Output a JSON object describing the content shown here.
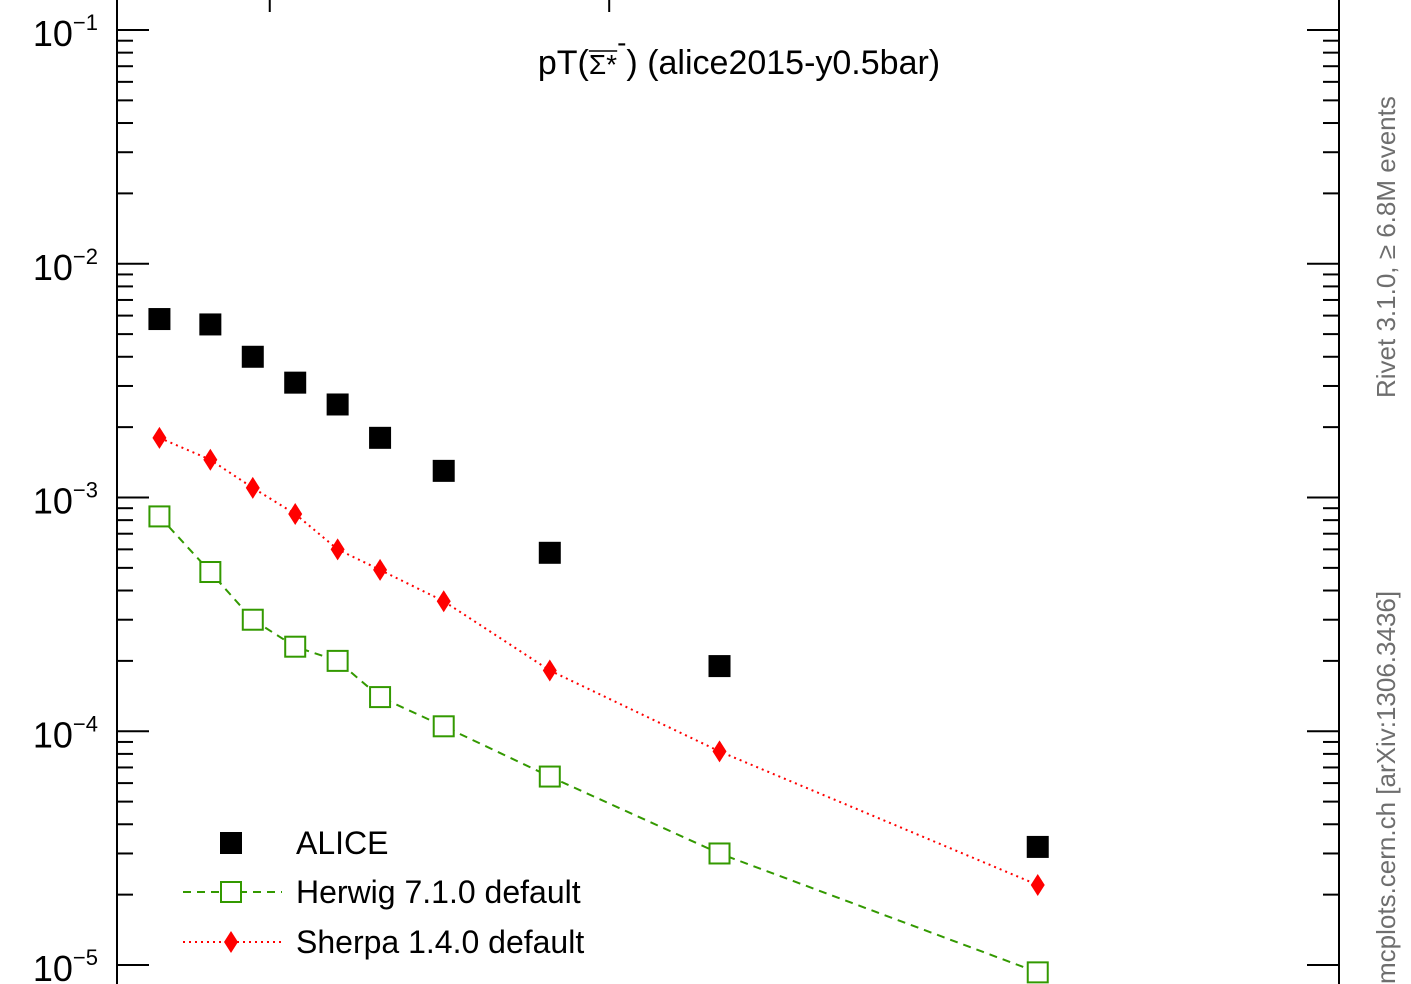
{
  "chart_data": {
    "type": "scatter",
    "title": {
      "prefix": "pT(",
      "particle": "Σ*",
      "charge": "-",
      "suffix": ") (alice2015-y0.5bar)"
    },
    "xlabel": "",
    "ylabel": "",
    "y_scale": "log",
    "ylim": [
      1e-05,
      0.1
    ],
    "xlim": [
      0.6,
      7.8
    ],
    "y_tick_labels": [
      {
        "base": "10",
        "exp": "−1",
        "value": 0.1
      },
      {
        "base": "10",
        "exp": "−2",
        "value": 0.01
      },
      {
        "base": "10",
        "exp": "−3",
        "value": 0.001
      },
      {
        "base": "10",
        "exp": "−4",
        "value": 0.0001
      },
      {
        "base": "10",
        "exp": "−5",
        "value": 1e-05
      }
    ],
    "x": [
      0.85,
      1.15,
      1.4,
      1.65,
      1.9,
      2.15,
      2.525,
      3.15,
      4.15,
      6.025
    ],
    "series": [
      {
        "name": "ALICE",
        "style": "black-filled-square",
        "color": "#000000",
        "x": [
          0.85,
          1.15,
          1.4,
          1.65,
          1.9,
          2.15,
          2.525,
          3.15,
          4.15,
          6.025
        ],
        "values": [
          0.0058,
          0.0055,
          0.004,
          0.0031,
          0.0025,
          0.0018,
          0.0013,
          0.00058,
          0.00019,
          3.2e-05
        ]
      },
      {
        "name": "Herwig 7.1.0 default",
        "style": "green-open-square-dashed",
        "color": "#339900",
        "x": [
          0.85,
          1.15,
          1.4,
          1.65,
          1.9,
          2.15,
          2.525,
          3.15,
          4.15,
          6.025
        ],
        "values": [
          0.00083,
          0.00048,
          0.0003,
          0.00023,
          0.0002,
          0.00014,
          0.000105,
          6.4e-05,
          3e-05,
          9.3e-06
        ]
      },
      {
        "name": "Sherpa 1.4.0 default",
        "style": "red-diamond-dotted",
        "color": "#ff0000",
        "x": [
          0.85,
          1.15,
          1.4,
          1.65,
          1.9,
          2.15,
          2.525,
          3.15,
          4.15,
          6.025
        ],
        "values": [
          0.0018,
          0.00145,
          0.0011,
          0.00085,
          0.0006,
          0.00049,
          0.00036,
          0.000182,
          8.2e-05,
          2.2e-05
        ]
      }
    ],
    "legend_placement": "bottom-left",
    "grid": false
  },
  "side_labels": {
    "rivet": "Rivet 3.1.0, ≥ 6.8M events",
    "source": "mcplots.cern.ch [arXiv:1306.3436]"
  },
  "colors": {
    "axis": "#000000",
    "side_text": "#6e6e6e"
  }
}
